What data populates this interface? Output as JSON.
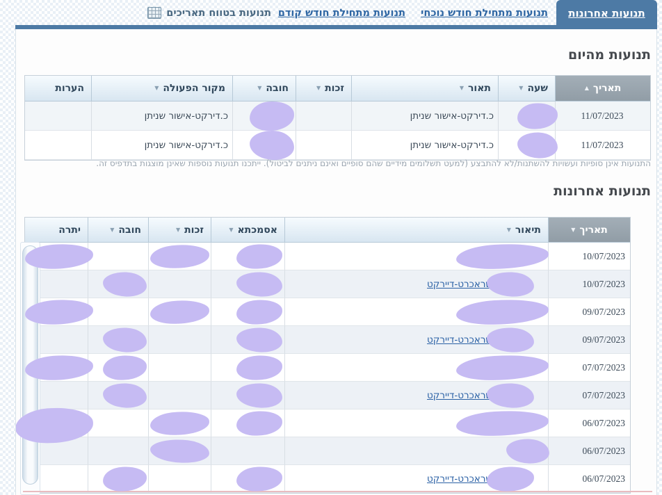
{
  "tabs": {
    "active": "תנועות אחרונות",
    "links": [
      {
        "label": "תנועות מתחילת חודש נוכחי"
      },
      {
        "label": "תנועות מתחילת חודש קודם"
      }
    ],
    "range": {
      "label": "תנועות בטווח תאריכים",
      "icon": "calendar-icon"
    }
  },
  "today_section": {
    "title": "תנועות מהיום",
    "columns": [
      {
        "key": "date",
        "label": "תאריך",
        "sort": "asc"
      },
      {
        "key": "time",
        "label": "שעה",
        "sort": "desc"
      },
      {
        "key": "desc",
        "label": "תאור",
        "sort": "desc"
      },
      {
        "key": "credit",
        "label": "זכות",
        "sort": "desc"
      },
      {
        "key": "debit",
        "label": "חובה",
        "sort": "desc"
      },
      {
        "key": "source",
        "label": "מקור הפעולה",
        "sort": "desc"
      },
      {
        "key": "notes",
        "label": "הערות",
        "sort": null
      }
    ],
    "rows": [
      {
        "date": "11/07/2023",
        "time": "",
        "desc": "כ.דירקט-אישור שניתן",
        "credit": "",
        "debit": "",
        "source": "כ.דירקט-אישור שניתן",
        "notes": "",
        "redacted": [
          "time",
          "debit"
        ]
      },
      {
        "date": "11/07/2023",
        "time": "",
        "desc": "כ.דירקט-אישור שניתן",
        "credit": "",
        "debit": "",
        "source": "כ.דירקט-אישור שניתן",
        "notes": "",
        "redacted": [
          "time",
          "debit"
        ]
      }
    ],
    "note": "התנועות אינן סופיות ועשויות להשתנות/לא להתבצע (למעט תשלומים מידיים שהם סופיים ואינם ניתנים לביטול). ייתכנו תנועות נוספות שאינן מוצגות בתדפיס זה."
  },
  "recent_section": {
    "title": "תנועות אחרונות",
    "columns": [
      {
        "key": "date",
        "label": "תאריך",
        "sort": "desc"
      },
      {
        "key": "desc",
        "label": "תיאור",
        "sort": "desc"
      },
      {
        "key": "ref",
        "label": "אסמכתא",
        "sort": "desc"
      },
      {
        "key": "credit",
        "label": "זכות",
        "sort": "desc"
      },
      {
        "key": "debit",
        "label": "חובה",
        "sort": "desc"
      },
      {
        "key": "balance",
        "label": "יתרה",
        "sort": null
      }
    ],
    "rows": [
      {
        "date": "10/07/2023",
        "desc": "",
        "link": false,
        "redacted": [
          "desc",
          "ref",
          "credit",
          "balance"
        ]
      },
      {
        "date": "10/07/2023",
        "desc": "שראכרט-דיירקט",
        "link": true,
        "redacted": [
          "desc",
          "ref",
          "debit"
        ]
      },
      {
        "date": "09/07/2023",
        "desc": "",
        "link": false,
        "redacted": [
          "desc",
          "ref",
          "credit",
          "balance"
        ]
      },
      {
        "date": "09/07/2023",
        "desc": "שראכרט-דיירקט",
        "link": true,
        "redacted": [
          "desc",
          "ref",
          "debit"
        ]
      },
      {
        "date": "07/07/2023",
        "desc": "",
        "link": false,
        "redacted": [
          "desc",
          "ref",
          "debit",
          "balance"
        ]
      },
      {
        "date": "07/07/2023",
        "desc": "שראכרט-דיירקט",
        "link": true,
        "redacted": [
          "desc",
          "ref",
          "debit"
        ]
      },
      {
        "date": "06/07/2023",
        "desc": "",
        "link": false,
        "redacted": [
          "desc",
          "ref",
          "credit",
          "balance"
        ],
        "big": [
          "balance"
        ]
      },
      {
        "date": "06/07/2023",
        "desc": "",
        "link": false,
        "redacted": [
          "desc",
          "credit"
        ],
        "small": [
          "desc"
        ]
      },
      {
        "date": "06/07/2023",
        "desc": "שראכרט-דיירקט",
        "link": true,
        "redacted": [
          "desc",
          "ref",
          "debit"
        ]
      }
    ]
  },
  "colors": {
    "accent": "#4d7aa5",
    "link": "#2e66a3",
    "redaction": "#c6bbf3",
    "sorted_header": "#9aa5ae"
  }
}
